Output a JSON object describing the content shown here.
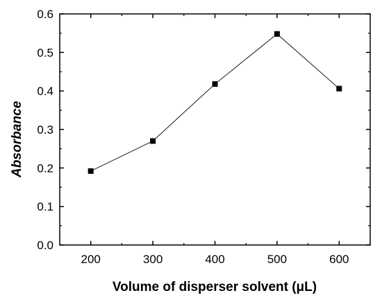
{
  "chart_data": {
    "type": "line",
    "title": "",
    "xlabel": "Volume of disperser solvent (μL)",
    "ylabel": "Absorbance",
    "x": [
      200,
      300,
      400,
      500,
      600
    ],
    "series": [
      {
        "values": [
          0.192,
          0.27,
          0.418,
          0.548,
          0.406
        ],
        "color": "#000000",
        "marker": "square"
      }
    ],
    "xlim": [
      150,
      650
    ],
    "ylim": [
      0.0,
      0.6
    ],
    "xticks": [
      "200",
      "300",
      "400",
      "500",
      "600"
    ],
    "yticks": [
      "0.0",
      "0.1",
      "0.2",
      "0.3",
      "0.4",
      "0.5",
      "0.6"
    ],
    "grid": false,
    "legend": "none"
  }
}
